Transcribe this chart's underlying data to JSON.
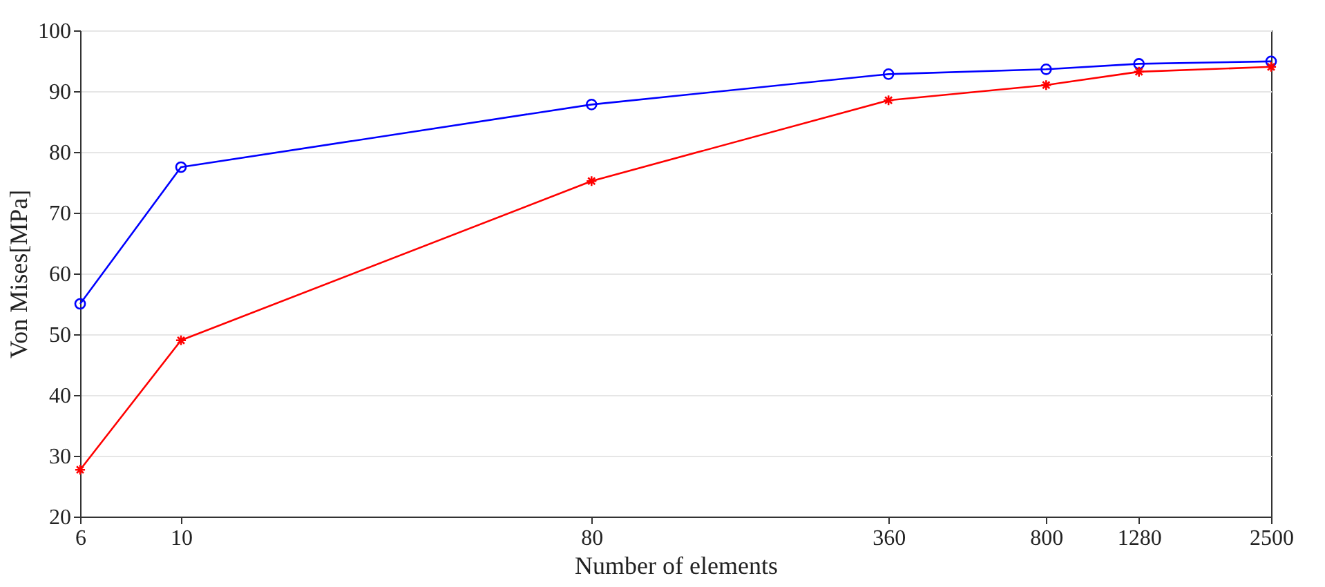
{
  "chart_data": {
    "type": "line",
    "xlabel": "Number of elements",
    "ylabel": "Von Mises[MPa]",
    "x": [
      6,
      10,
      80,
      360,
      800,
      1280,
      2500
    ],
    "series": [
      {
        "color": "#0000ff",
        "marker": "circle",
        "values": [
          55,
          77.5,
          87.8,
          92.8,
          93.6,
          94.5,
          94.9
        ]
      },
      {
        "color": "#ff0000",
        "marker": "cross",
        "values": [
          27.7,
          49,
          75.2,
          88.5,
          91,
          93.2,
          94
        ]
      }
    ],
    "log": "x",
    "xlim": [
      6,
      2500
    ],
    "xticks": [
      6,
      10,
      80,
      360,
      800,
      1280,
      2500
    ],
    "ylim": [
      20,
      100
    ],
    "yticks": [
      20,
      30,
      40,
      50,
      60,
      70,
      80,
      90,
      100
    ],
    "grid": "y"
  }
}
